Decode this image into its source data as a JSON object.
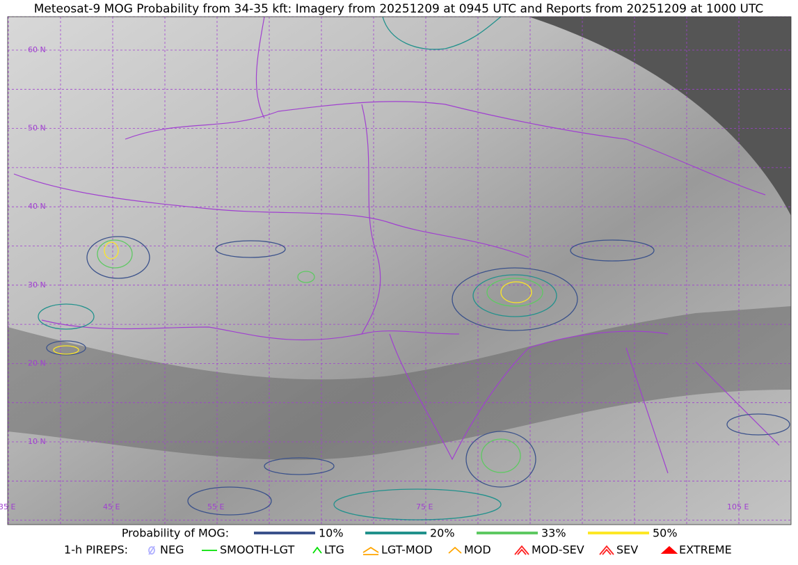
{
  "header": {
    "title": "Meteosat-9 MOG Probability from 34-35 kft: Imagery from 20251209 at 0945 UTC and Reports from 20251209 at 1000 UTC"
  },
  "map": {
    "lat_labels": [
      "60 N",
      "50 N",
      "40 N",
      "30 N",
      "20 N",
      "10 N"
    ],
    "lon_labels": [
      "35 E",
      "45 E",
      "55 E",
      "75 E",
      "105 E"
    ]
  },
  "legend": {
    "probability": {
      "label": "Probability of MOG:",
      "items": [
        {
          "label": "10%",
          "color": "#3b528b"
        },
        {
          "label": "20%",
          "color": "#21918c"
        },
        {
          "label": "33%",
          "color": "#5ec962"
        },
        {
          "label": "50%",
          "color": "#fde725"
        }
      ]
    },
    "pireps": {
      "label": "1-h PIREPS:",
      "items": [
        {
          "label": "NEG",
          "color": "#b0b0ff"
        },
        {
          "label": "SMOOTH-LGT",
          "color": "#00e000"
        },
        {
          "label": "LTG",
          "color": "#00e000"
        },
        {
          "label": "LGT-MOD",
          "color": "#ffa500"
        },
        {
          "label": "MOD",
          "color": "#ffa500"
        },
        {
          "label": "MOD-SEV",
          "color": "#ff2020"
        },
        {
          "label": "SEV",
          "color": "#ff2020"
        },
        {
          "label": "EXTREME",
          "color": "#ff0000"
        }
      ]
    }
  }
}
